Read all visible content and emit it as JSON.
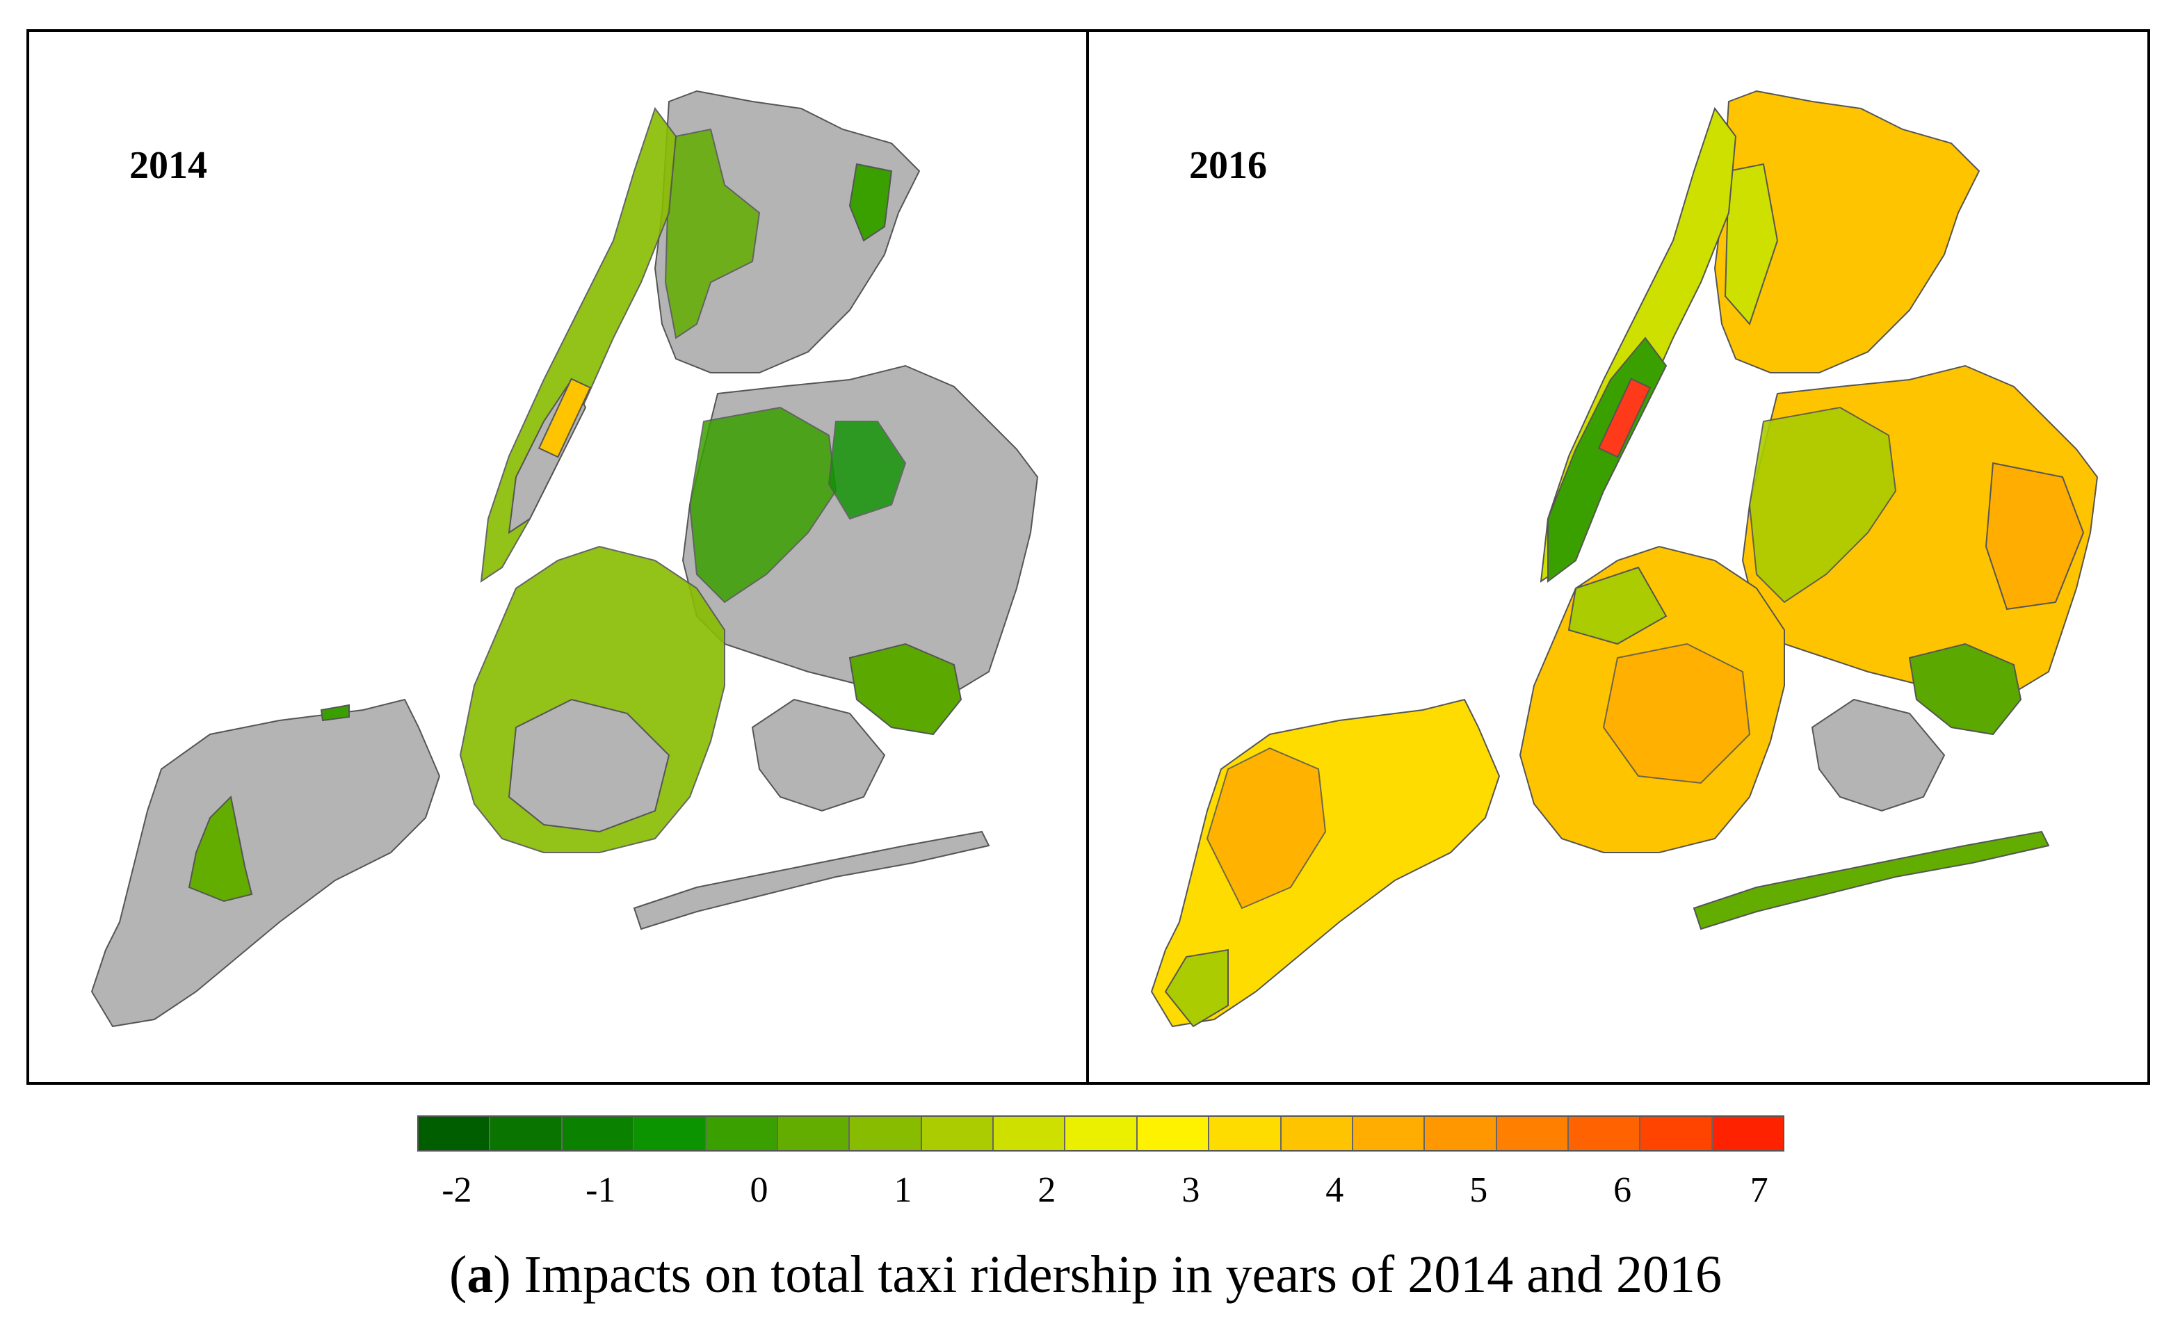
{
  "panels": [
    {
      "id": "p2014",
      "year": "2014"
    },
    {
      "id": "p2016",
      "year": "2016"
    }
  ],
  "legend": {
    "colors": [
      "#005e00",
      "#0a7400",
      "#0a8200",
      "#0c9300",
      "#3aa000",
      "#62ad00",
      "#88bc00",
      "#aacc00",
      "#cde000",
      "#eaf000",
      "#fff200",
      "#ffdc00",
      "#ffc400",
      "#ffad00",
      "#ff9800",
      "#ff7f00",
      "#ff6200",
      "#ff4400",
      "#ff2200"
    ],
    "tick_labels": [
      "-2",
      "-1",
      "0",
      "1",
      "2",
      "3",
      "4",
      "5",
      "6",
      "7"
    ]
  },
  "caption": {
    "label": "a",
    "text": " Impacts on total taxi ridership in years of 2014 and 2016"
  },
  "map_colors": {
    "no_data": "#b4b4b4",
    "outline": "#555555",
    "central_park_2014": "#ffc400",
    "central_park_2016": "#ff3a1a",
    "jfk": "#5aa800"
  }
}
